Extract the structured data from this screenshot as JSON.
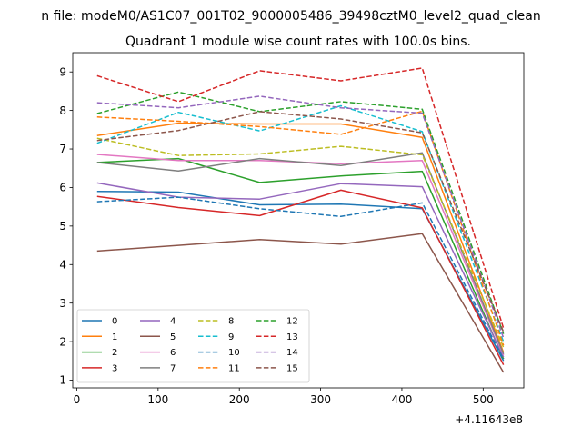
{
  "suptitle": "n file: modeM0/AS1C07_001T02_9000005486_39498cztM0_level2_quad_clean",
  "chart_data": {
    "type": "line",
    "title": "Quadrant 1 module wise count rates with 100.0s bins.",
    "xlabel": "",
    "ylabel": "",
    "x_offset_label": "+4.11643e8",
    "xlim": [
      -5,
      550
    ],
    "ylim": [
      0.8,
      9.5
    ],
    "x_ticks": [
      0,
      100,
      200,
      300,
      400,
      500
    ],
    "y_ticks": [
      1,
      2,
      3,
      4,
      5,
      6,
      7,
      8,
      9
    ],
    "x": [
      25,
      125,
      225,
      325,
      425,
      525
    ],
    "legend_position": "lower-left",
    "grid": false,
    "series": [
      {
        "name": "0",
        "color": "#1f77b4",
        "dash": "solid",
        "values": [
          5.9,
          5.88,
          5.55,
          5.57,
          5.45,
          1.5
        ]
      },
      {
        "name": "1",
        "color": "#ff7f0e",
        "dash": "solid",
        "values": [
          7.35,
          7.67,
          7.65,
          7.65,
          7.3,
          1.72
        ]
      },
      {
        "name": "2",
        "color": "#2ca02c",
        "dash": "solid",
        "values": [
          6.65,
          6.75,
          6.13,
          6.3,
          6.42,
          1.55
        ]
      },
      {
        "name": "3",
        "color": "#d62728",
        "dash": "solid",
        "values": [
          5.77,
          5.48,
          5.27,
          5.93,
          5.47,
          1.4
        ]
      },
      {
        "name": "4",
        "color": "#9467bd",
        "dash": "solid",
        "values": [
          6.12,
          5.75,
          5.7,
          6.1,
          6.02,
          1.6
        ]
      },
      {
        "name": "5",
        "color": "#8c564b",
        "dash": "solid",
        "values": [
          4.35,
          4.5,
          4.65,
          4.53,
          4.8,
          1.2
        ]
      },
      {
        "name": "6",
        "color": "#e377c2",
        "dash": "solid",
        "values": [
          6.86,
          6.7,
          6.7,
          6.62,
          6.7,
          1.65
        ]
      },
      {
        "name": "7",
        "color": "#7f7f7f",
        "dash": "solid",
        "values": [
          6.65,
          6.43,
          6.75,
          6.57,
          6.9,
          1.68
        ]
      },
      {
        "name": "8",
        "color": "#bcbd22",
        "dash": "dashed",
        "values": [
          7.28,
          6.83,
          6.87,
          7.07,
          6.85,
          1.85
        ]
      },
      {
        "name": "9",
        "color": "#17becf",
        "dash": "dashed",
        "values": [
          7.15,
          7.95,
          7.47,
          8.12,
          7.45,
          2.0
        ]
      },
      {
        "name": "10",
        "color": "#1f77b4",
        "dash": "dashed",
        "values": [
          5.63,
          5.75,
          5.45,
          5.25,
          5.6,
          1.55
        ]
      },
      {
        "name": "11",
        "color": "#ff7f0e",
        "dash": "dashed",
        "values": [
          7.83,
          7.72,
          7.58,
          7.38,
          7.98,
          1.9
        ]
      },
      {
        "name": "12",
        "color": "#2ca02c",
        "dash": "dashed",
        "values": [
          7.92,
          8.48,
          7.97,
          8.23,
          8.03,
          2.2
        ]
      },
      {
        "name": "13",
        "color": "#d62728",
        "dash": "dashed",
        "values": [
          8.9,
          8.23,
          9.03,
          8.77,
          9.1,
          2.35
        ]
      },
      {
        "name": "14",
        "color": "#9467bd",
        "dash": "dashed",
        "values": [
          8.2,
          8.07,
          8.37,
          8.07,
          7.93,
          2.1
        ]
      },
      {
        "name": "15",
        "color": "#8c564b",
        "dash": "dashed",
        "values": [
          7.22,
          7.48,
          7.97,
          7.78,
          7.42,
          2.25
        ]
      }
    ]
  }
}
